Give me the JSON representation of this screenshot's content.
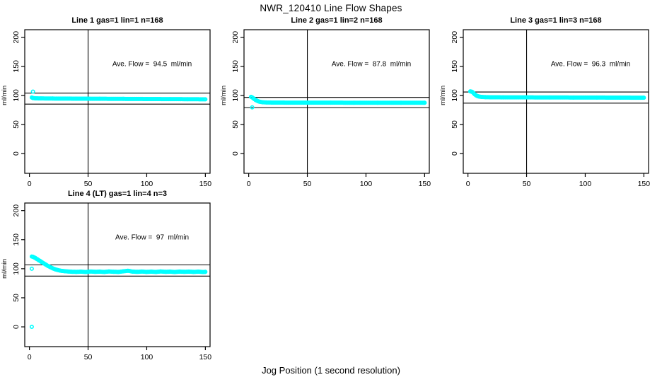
{
  "page": {
    "background": "#ffffff"
  },
  "chart_data": {
    "type": "scatter",
    "suptitle": "NWR_120410  Line Flow Shapes",
    "xlabel": "Jog Position (1 second resolution)",
    "ylabel": "ml/min",
    "x_ticks": [
      0,
      50,
      100,
      150
    ],
    "y_ticks": [
      0,
      50,
      100,
      150,
      200
    ],
    "xlim": [
      -4,
      154
    ],
    "ylim": [
      -34,
      213
    ],
    "marker_color": "#00FFFF",
    "axis_color": "#000000",
    "legend_position": "none",
    "grid": false,
    "plots": [
      {
        "title": "Line 1 gas=1 lin=1 n=168",
        "ave_flow": 94.5,
        "ave_flow_label": "Ave. Flow =  94.5  ml/min",
        "vline_x": 50,
        "hlines": [
          104.0,
          85.0
        ],
        "band": [
          [
            2,
            96.5
          ],
          [
            3,
            95.5
          ],
          [
            5,
            95.0
          ],
          [
            10,
            94.8
          ],
          [
            20,
            94.6
          ],
          [
            40,
            94.4
          ],
          [
            60,
            94.2
          ],
          [
            80,
            94.0
          ],
          [
            100,
            93.8
          ],
          [
            120,
            93.6
          ],
          [
            135,
            93.5
          ],
          [
            150,
            93.3
          ]
        ],
        "outliers": [
          [
            3,
            106.5
          ]
        ]
      },
      {
        "title": "Line 2 gas=1 lin=2 n=168",
        "ave_flow": 87.8,
        "ave_flow_label": "Ave. Flow =  87.8  ml/min",
        "vline_x": 50,
        "hlines": [
          96.6,
          79.0
        ],
        "band": [
          [
            2,
            97.5
          ],
          [
            3,
            96.5
          ],
          [
            4,
            95.0
          ],
          [
            5,
            93.5
          ],
          [
            6,
            92.0
          ],
          [
            7,
            91.0
          ],
          [
            8,
            90.0
          ],
          [
            9,
            89.3
          ],
          [
            10,
            88.8
          ],
          [
            12,
            88.2
          ],
          [
            15,
            87.9
          ],
          [
            20,
            87.7
          ],
          [
            30,
            87.6
          ],
          [
            50,
            87.5
          ],
          [
            70,
            87.5
          ],
          [
            90,
            87.4
          ],
          [
            110,
            87.4
          ],
          [
            130,
            87.3
          ],
          [
            150,
            87.3
          ]
        ],
        "outliers": [
          [
            3,
            79.5
          ]
        ]
      },
      {
        "title": "Line 3 gas=1 lin=3 n=168",
        "ave_flow": 96.3,
        "ave_flow_label": "Ave. Flow =  96.3  ml/min",
        "vline_x": 50,
        "hlines": [
          105.9,
          86.7
        ],
        "band": [
          [
            2,
            107.0
          ],
          [
            3,
            106.5
          ],
          [
            4,
            105.5
          ],
          [
            5,
            103.5
          ],
          [
            6,
            101.5
          ],
          [
            7,
            100.0
          ],
          [
            8,
            99.0
          ],
          [
            9,
            98.3
          ],
          [
            10,
            97.8
          ],
          [
            12,
            97.3
          ],
          [
            15,
            97.0
          ],
          [
            20,
            96.8
          ],
          [
            30,
            96.7
          ],
          [
            50,
            96.6
          ],
          [
            70,
            96.5
          ],
          [
            90,
            96.4
          ],
          [
            110,
            96.3
          ],
          [
            130,
            96.2
          ],
          [
            150,
            96.0
          ]
        ],
        "outliers": []
      },
      {
        "title": "Line 4 (LT) gas=1 lin=4 n=3",
        "ave_flow": 97,
        "ave_flow_label": "Ave. Flow =  97  ml/min",
        "vline_x": 50,
        "hlines": [
          106.7,
          87.3
        ],
        "band": [
          [
            2,
            121.0
          ],
          [
            3,
            120.5
          ],
          [
            4,
            119.5
          ],
          [
            5,
            118.5
          ],
          [
            6,
            117.0
          ],
          [
            7,
            116.0
          ],
          [
            8,
            114.5
          ],
          [
            9,
            113.5
          ],
          [
            10,
            112.0
          ],
          [
            12,
            109.5
          ],
          [
            14,
            107.0
          ],
          [
            16,
            104.5
          ],
          [
            18,
            102.5
          ],
          [
            20,
            100.5
          ],
          [
            22,
            99.0
          ],
          [
            24,
            97.8
          ],
          [
            26,
            96.8
          ],
          [
            28,
            96.2
          ],
          [
            30,
            95.7
          ],
          [
            33,
            95.2
          ],
          [
            36,
            94.8
          ],
          [
            40,
            94.5
          ],
          [
            44,
            95.0
          ],
          [
            48,
            94.3
          ],
          [
            52,
            95.2
          ],
          [
            56,
            94.6
          ],
          [
            60,
            95.0
          ],
          [
            64,
            94.4
          ],
          [
            68,
            95.3
          ],
          [
            72,
            94.7
          ],
          [
            76,
            94.5
          ],
          [
            80,
            95.5
          ],
          [
            84,
            96.5
          ],
          [
            88,
            95.0
          ],
          [
            92,
            94.6
          ],
          [
            96,
            95.2
          ],
          [
            100,
            94.5
          ],
          [
            104,
            95.0
          ],
          [
            108,
            94.4
          ],
          [
            112,
            95.3
          ],
          [
            116,
            94.6
          ],
          [
            120,
            95.0
          ],
          [
            124,
            94.3
          ],
          [
            128,
            95.1
          ],
          [
            132,
            94.6
          ],
          [
            136,
            95.0
          ],
          [
            140,
            94.5
          ],
          [
            144,
            94.9
          ],
          [
            148,
            94.3
          ],
          [
            150,
            94.6
          ]
        ],
        "outliers": [
          [
            2,
            100.0
          ],
          [
            2,
            0.0
          ]
        ]
      }
    ]
  }
}
